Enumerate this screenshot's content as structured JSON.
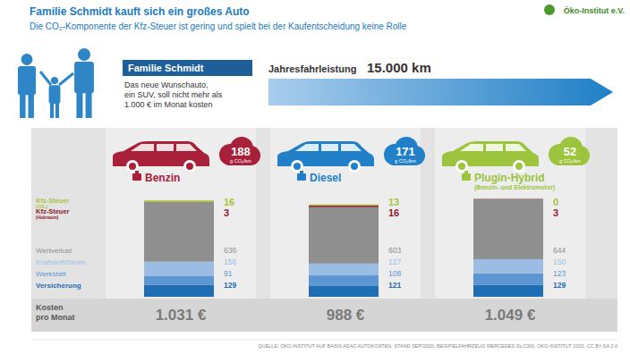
{
  "chart_data": {
    "type": "bar",
    "stacked": true,
    "data_labels": true,
    "tick_labels": false,
    "title": "Familie Schmidt kauft sich ein großes Auto",
    "subtitle": "Die CO₂-Komponente der Kfz-Steuer ist gering und spielt bei der Kaufentscheidung keine Rolle",
    "categories": [
      "Benzin",
      "Diesel",
      "Plugin-Hybrid"
    ],
    "ylim": [
      0,
      1100
    ],
    "series": [
      {
        "name": "Versicherung",
        "color": "#1f6db3",
        "values": [
          129,
          121,
          129
        ]
      },
      {
        "name": "Werkstatt",
        "color": "#5c97d3",
        "values": [
          91,
          108,
          123
        ]
      },
      {
        "name": "Kraftstoff/Strom",
        "color": "#9bbde4",
        "values": [
          156,
          127,
          150
        ]
      },
      {
        "name": "Wertverlust",
        "color": "#8f8f8f",
        "values": [
          636,
          603,
          644
        ]
      },
      {
        "name": "Kfz-Steuer (Hubraum)",
        "color": "#8e1b2e",
        "values": [
          3,
          16,
          3
        ]
      },
      {
        "name": "Kfz-Steuer (CO₂)",
        "color": "#a8c43a",
        "values": [
          16,
          13,
          0
        ]
      }
    ],
    "totals": {
      "label": "Kosten pro Monat",
      "values": [
        1031,
        988,
        1049
      ],
      "value_labels": [
        "1.031 €",
        "988 €",
        "1.049 €"
      ]
    }
  },
  "logo": "Öko-Institut e.V.",
  "family": {
    "title": "Familie Schmidt",
    "text": [
      "Das neue Wunschauto,",
      "ein SUV, soll nicht mehr als",
      "1.000 € im Monat kosten"
    ]
  },
  "mileage": {
    "label": "Jahresfahrleistung",
    "value": "15.000 km"
  },
  "vehicles": [
    {
      "emission": 188,
      "unit": "g CO₂/km",
      "color": "#a8203a"
    },
    {
      "emission": 171,
      "unit": "g CO₂/km",
      "color": "#2180c8"
    },
    {
      "emission": 52,
      "unit": "g CO₂/km",
      "color": "#9cc43c",
      "detail": "(Benzin- und Elektromotor)"
    }
  ],
  "source": "QUELLE: ÖKO-INSTITUT AUF BASIS ADAC AUTOKOSTEN, STAND SEP/2020, BEISPIELFAHRZEUG MERCEDES GLC300; ÖKO-INSTITUT 2020, CC BY-SA 2.0"
}
